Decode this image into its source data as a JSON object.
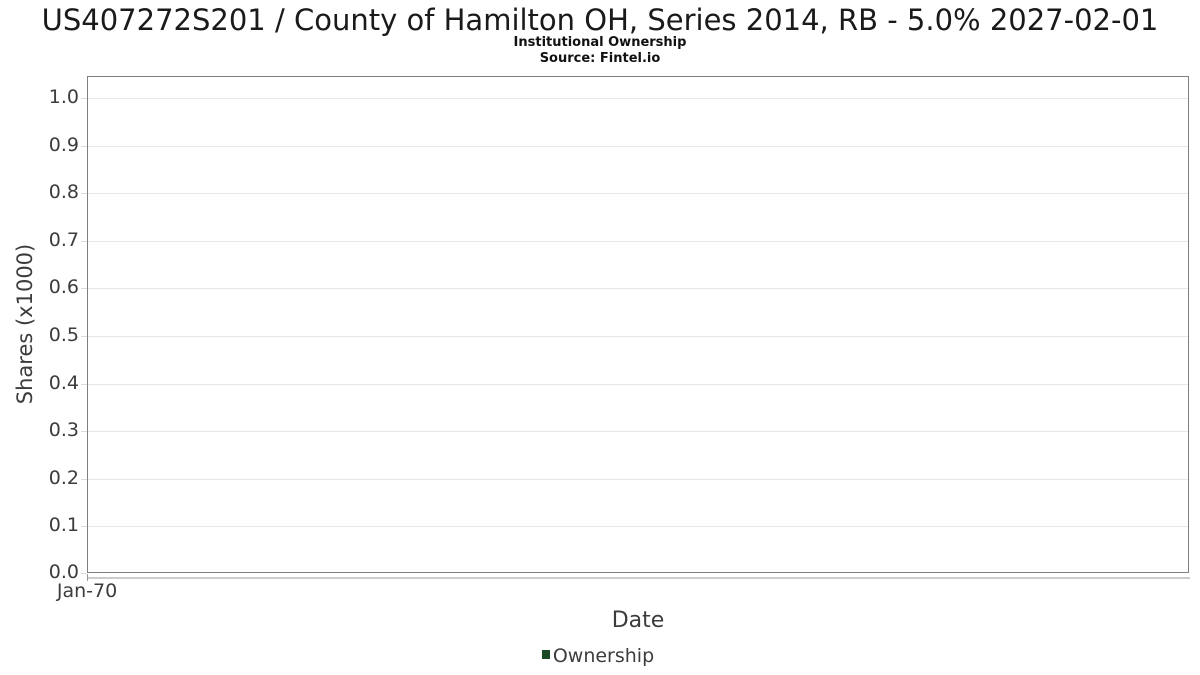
{
  "chart_data": {
    "type": "line",
    "title": "US407272S201 / County of Hamilton OH, Series 2014, RB - 5.0% 2027-02-01",
    "subtitle": "Institutional Ownership",
    "source_annotation": "Source: Fintel.io",
    "xlabel": "Date",
    "ylabel": "Shares (x1000)",
    "x_tick_labels": [
      "Jan-70"
    ],
    "y_tick_labels": [
      "0.0",
      "0.1",
      "0.2",
      "0.3",
      "0.4",
      "0.5",
      "0.6",
      "0.7",
      "0.8",
      "0.9",
      "1.0"
    ],
    "y_tick_values": [
      0.0,
      0.1,
      0.2,
      0.3,
      0.4,
      0.5,
      0.6,
      0.7,
      0.8,
      0.9,
      1.0
    ],
    "ylim": [
      0,
      1.0442
    ],
    "grid": true,
    "legend_position": "bottom-center",
    "series": [
      {
        "name": "Ownership",
        "color": "#1c4a27",
        "x": [],
        "values": []
      }
    ]
  }
}
